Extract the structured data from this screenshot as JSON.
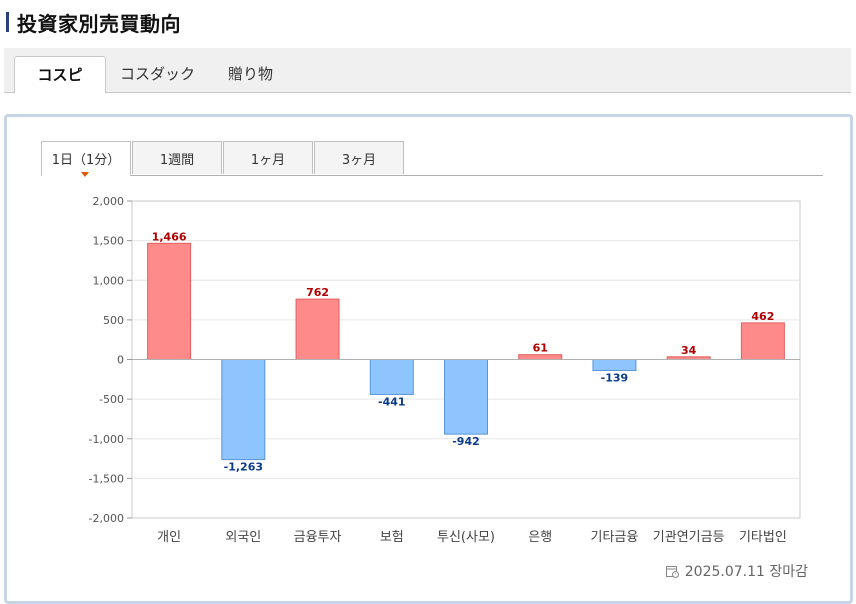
{
  "page": {
    "title": "投資家別売買動向"
  },
  "market_tabs": [
    {
      "label": "コスピ",
      "active": true
    },
    {
      "label": "コスダック",
      "active": false
    },
    {
      "label": "贈り物",
      "active": false
    }
  ],
  "period_tabs": [
    {
      "label": "1日（1分）",
      "active": true
    },
    {
      "label": "1週間",
      "active": false
    },
    {
      "label": "1ヶ月",
      "active": false
    },
    {
      "label": "3ヶ月",
      "active": false
    }
  ],
  "footer": {
    "date_text": "2025.07.11 장마감",
    "icon": "calendar-clock-icon"
  },
  "colors": {
    "positive_fill": "#ff8a8a",
    "positive_stroke": "#e06060",
    "positive_label": "#b00000",
    "negative_fill": "#8ec5ff",
    "negative_stroke": "#5a95d8",
    "negative_label": "#0b3c8c",
    "title_accent": "#2b3f7a"
  },
  "chart_data": {
    "type": "bar",
    "categories": [
      "개인",
      "외국인",
      "금융투자",
      "보험",
      "투신(사모)",
      "은행",
      "기타금융",
      "기관연기금등",
      "기타법인"
    ],
    "values": [
      1466,
      -1263,
      762,
      -441,
      -942,
      61,
      -139,
      34,
      462
    ],
    "value_labels": [
      "1,466",
      "-1,263",
      "762",
      "-441",
      "-942",
      "61",
      "-139",
      "34",
      "462"
    ],
    "ylim": [
      -2000,
      2000
    ],
    "yticks": [
      2000,
      1500,
      1000,
      500,
      0,
      -500,
      -1000,
      -1500,
      -2000
    ],
    "ytick_labels": [
      "2,000",
      "1,500",
      "1,000",
      "500",
      "0",
      "-500",
      "-1,000",
      "-1,500",
      "-2,000"
    ],
    "grid": true,
    "legend": "none",
    "title": "",
    "xlabel": "",
    "ylabel": ""
  }
}
